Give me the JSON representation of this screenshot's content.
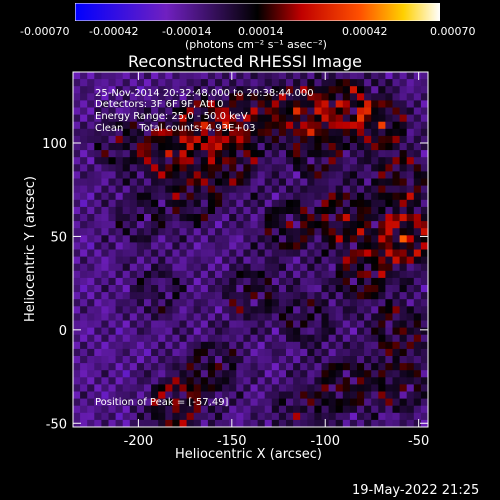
{
  "colorbar": {
    "tick_labels": [
      "-0.00070",
      "-0.00042",
      "-0.00014",
      "0.00014",
      "0.00042",
      "0.00070"
    ],
    "units": "(photons cm⁻² s⁻¹ asec⁻²)"
  },
  "title": "Reconstructed RHESSI Image",
  "annotations": {
    "line1": "25-Nov-2014 20:32:48.000 to 20:38:44.000",
    "line2": "Detectors: 3F 6F 9F, Att 0",
    "line3": "Energy Range: 25.0 - 50.0 keV",
    "line4": "Clean     Total counts: 4.93E+03",
    "peak": "Position of Peak = [-57,49]"
  },
  "chart_data": {
    "type": "heatmap",
    "title": "Reconstructed RHESSI Image",
    "xlabel": "Heliocentric X (arcsec)",
    "ylabel": "Heliocentric Y (arcsec)",
    "xlim": [
      -235,
      -45
    ],
    "ylim": [
      -52,
      138
    ],
    "x_ticks": [
      -200,
      -150,
      -100,
      -50
    ],
    "y_ticks": [
      -50,
      0,
      50,
      100
    ],
    "colormap_range": [
      -0.0007,
      0.0007
    ],
    "peak_position": [
      -57,
      49
    ]
  },
  "footer_date": "19-May-2022 21:25"
}
